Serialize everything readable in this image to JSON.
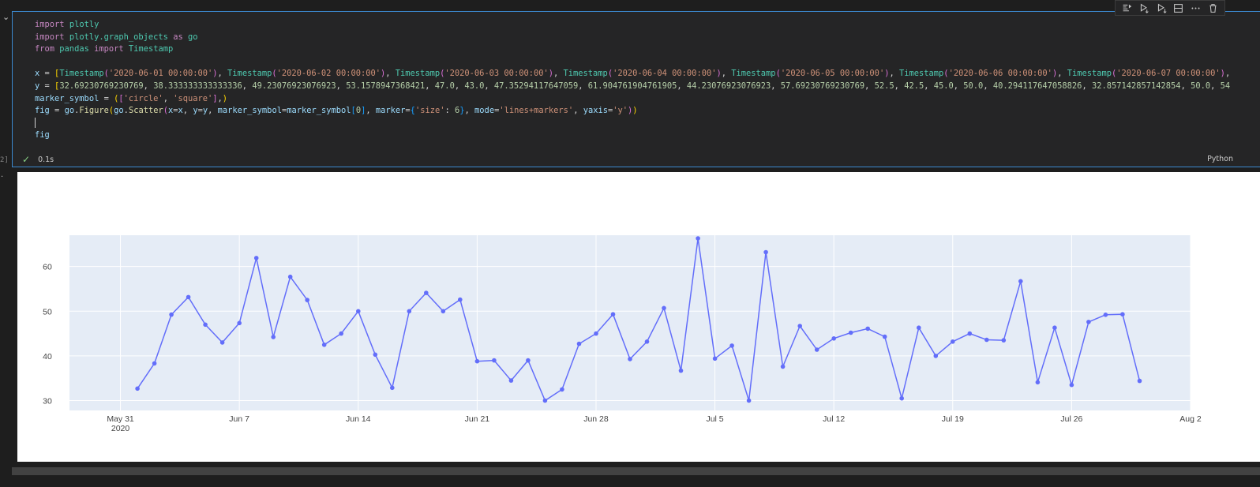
{
  "cell": {
    "execution_count": "2]",
    "code_lines": [
      [
        [
          "kw",
          "import"
        ],
        [
          "txt",
          " "
        ],
        [
          "mod",
          "plotly"
        ]
      ],
      [
        [
          "kw",
          "import"
        ],
        [
          "txt",
          " "
        ],
        [
          "mod",
          "plotly.graph_objects"
        ],
        [
          "txt",
          " "
        ],
        [
          "kw",
          "as"
        ],
        [
          "txt",
          " "
        ],
        [
          "mod",
          "go"
        ]
      ],
      [
        [
          "kw",
          "from"
        ],
        [
          "txt",
          " "
        ],
        [
          "mod",
          "pandas"
        ],
        [
          "txt",
          " "
        ],
        [
          "kw",
          "import"
        ],
        [
          "txt",
          " "
        ],
        [
          "mod",
          "Timestamp"
        ]
      ],
      [],
      [
        [
          "var",
          "x"
        ],
        [
          "txt",
          " = "
        ],
        [
          "brk1",
          "["
        ],
        [
          "mod",
          "Timestamp"
        ],
        [
          "brk2",
          "("
        ],
        [
          "str",
          "'2020-06-01 00:00:00'"
        ],
        [
          "brk2",
          ")"
        ],
        [
          "txt",
          ", "
        ],
        [
          "mod",
          "Timestamp"
        ],
        [
          "brk2",
          "("
        ],
        [
          "str",
          "'2020-06-02 00:00:00'"
        ],
        [
          "brk2",
          ")"
        ],
        [
          "txt",
          ", "
        ],
        [
          "mod",
          "Timestamp"
        ],
        [
          "brk2",
          "("
        ],
        [
          "str",
          "'2020-06-03 00:00:00'"
        ],
        [
          "brk2",
          ")"
        ],
        [
          "txt",
          ", "
        ],
        [
          "mod",
          "Timestamp"
        ],
        [
          "brk2",
          "("
        ],
        [
          "str",
          "'2020-06-04 00:00:00'"
        ],
        [
          "brk2",
          ")"
        ],
        [
          "txt",
          ", "
        ],
        [
          "mod",
          "Timestamp"
        ],
        [
          "brk2",
          "("
        ],
        [
          "str",
          "'2020-06-05 00:00:00'"
        ],
        [
          "brk2",
          ")"
        ],
        [
          "txt",
          ", "
        ],
        [
          "mod",
          "Timestamp"
        ],
        [
          "brk2",
          "("
        ],
        [
          "str",
          "'2020-06-06 00:00:00'"
        ],
        [
          "brk2",
          ")"
        ],
        [
          "txt",
          ", "
        ],
        [
          "mod",
          "Timestamp"
        ],
        [
          "brk2",
          "("
        ],
        [
          "str",
          "'2020-06-07 00:00:00'"
        ],
        [
          "brk2",
          ")"
        ],
        [
          "txt",
          ","
        ]
      ],
      [
        [
          "var",
          "y"
        ],
        [
          "txt",
          " = "
        ],
        [
          "brk1",
          "["
        ],
        [
          "num",
          "32.69230769230769"
        ],
        [
          "txt",
          ", "
        ],
        [
          "num",
          "38.333333333333336"
        ],
        [
          "txt",
          ", "
        ],
        [
          "num",
          "49.23076923076923"
        ],
        [
          "txt",
          ", "
        ],
        [
          "num",
          "53.1578947368421"
        ],
        [
          "txt",
          ", "
        ],
        [
          "num",
          "47.0"
        ],
        [
          "txt",
          ", "
        ],
        [
          "num",
          "43.0"
        ],
        [
          "txt",
          ", "
        ],
        [
          "num",
          "47.35294117647059"
        ],
        [
          "txt",
          ", "
        ],
        [
          "num",
          "61.904761904761905"
        ],
        [
          "txt",
          ", "
        ],
        [
          "num",
          "44.23076923076923"
        ],
        [
          "txt",
          ", "
        ],
        [
          "num",
          "57.69230769230769"
        ],
        [
          "txt",
          ", "
        ],
        [
          "num",
          "52.5"
        ],
        [
          "txt",
          ", "
        ],
        [
          "num",
          "42.5"
        ],
        [
          "txt",
          ", "
        ],
        [
          "num",
          "45.0"
        ],
        [
          "txt",
          ", "
        ],
        [
          "num",
          "50.0"
        ],
        [
          "txt",
          ", "
        ],
        [
          "num",
          "40.294117647058826"
        ],
        [
          "txt",
          ", "
        ],
        [
          "num",
          "32.857142857142854"
        ],
        [
          "txt",
          ", "
        ],
        [
          "num",
          "50.0"
        ],
        [
          "txt",
          ", "
        ],
        [
          "num",
          "54"
        ]
      ],
      [
        [
          "var",
          "marker_symbol"
        ],
        [
          "txt",
          " = "
        ],
        [
          "brk1",
          "("
        ],
        [
          "brk2",
          "["
        ],
        [
          "str",
          "'circle'"
        ],
        [
          "txt",
          ", "
        ],
        [
          "str",
          "'square'"
        ],
        [
          "brk2",
          "]"
        ],
        [
          "txt",
          ","
        ],
        [
          "brk1",
          ")"
        ]
      ],
      [
        [
          "var",
          "fig"
        ],
        [
          "txt",
          " = "
        ],
        [
          "var",
          "go"
        ],
        [
          "txt",
          "."
        ],
        [
          "fn",
          "Figure"
        ],
        [
          "brk1",
          "("
        ],
        [
          "var",
          "go"
        ],
        [
          "txt",
          "."
        ],
        [
          "fn",
          "Scatter"
        ],
        [
          "brk2",
          "("
        ],
        [
          "var",
          "x"
        ],
        [
          "txt",
          "="
        ],
        [
          "var",
          "x"
        ],
        [
          "txt",
          ", "
        ],
        [
          "var",
          "y"
        ],
        [
          "txt",
          "="
        ],
        [
          "var",
          "y"
        ],
        [
          "txt",
          ", "
        ],
        [
          "var",
          "marker_symbol"
        ],
        [
          "txt",
          "="
        ],
        [
          "var",
          "marker_symbol"
        ],
        [
          "brk3",
          "["
        ],
        [
          "num",
          "0"
        ],
        [
          "brk3",
          "]"
        ],
        [
          "txt",
          ", "
        ],
        [
          "var",
          "marker"
        ],
        [
          "txt",
          "="
        ],
        [
          "brk3",
          "{"
        ],
        [
          "str",
          "'size'"
        ],
        [
          "txt",
          ": "
        ],
        [
          "num",
          "6"
        ],
        [
          "brk3",
          "}"
        ],
        [
          "txt",
          ", "
        ],
        [
          "var",
          "mode"
        ],
        [
          "txt",
          "="
        ],
        [
          "str",
          "'lines+markers'"
        ],
        [
          "txt",
          ", "
        ],
        [
          "var",
          "yaxis"
        ],
        [
          "txt",
          "="
        ],
        [
          "str",
          "'y'"
        ],
        [
          "brk2",
          ")"
        ],
        [
          "brk1",
          ")"
        ]
      ],
      [
        [
          "caret",
          ""
        ]
      ],
      [
        [
          "var",
          "fig"
        ]
      ]
    ],
    "status_icon": "check-icon",
    "exec_time": "0.1s",
    "language": "Python"
  },
  "toolbar": {
    "icons": [
      "execute-above-icon",
      "execute-cell-below-icon",
      "execute-below-icon",
      "split-cell-icon",
      "more-actions-icon",
      "delete-cell-icon"
    ]
  },
  "colors": {
    "plot_bg": "#e5ecf6",
    "line": "#636efa",
    "cell_border": "#3c89d0",
    "editor_bg": "#252526"
  },
  "chart_data": {
    "type": "line",
    "mode": "lines+markers",
    "marker_symbol": "circle",
    "x_start": "2020-06-01",
    "x_tick_labels": [
      "May 31\n2020",
      "Jun 7",
      "Jun 14",
      "Jun 21",
      "Jun 28",
      "Jul 5",
      "Jul 12",
      "Jul 19",
      "Jul 26",
      "Aug 2"
    ],
    "x_tick_dates": [
      "2020-05-31",
      "2020-06-07",
      "2020-06-14",
      "2020-06-21",
      "2020-06-28",
      "2020-07-05",
      "2020-07-12",
      "2020-07-19",
      "2020-07-26",
      "2020-08-02"
    ],
    "xlim": [
      "2020-05-28",
      "2020-08-02"
    ],
    "y_ticks": [
      30,
      40,
      50,
      60
    ],
    "ylim": [
      27.8,
      67.0
    ],
    "grid": true,
    "values": [
      32.69,
      38.33,
      49.23,
      53.16,
      47.0,
      43.0,
      47.35,
      61.9,
      44.23,
      57.69,
      52.5,
      42.5,
      45.0,
      50.0,
      40.29,
      32.86,
      50.0,
      54.1,
      50.0,
      52.6,
      38.8,
      39.0,
      34.5,
      39.0,
      30.0,
      32.5,
      42.7,
      45.0,
      49.3,
      39.3,
      43.2,
      50.7,
      36.7,
      66.3,
      39.4,
      42.3,
      30.0,
      63.2,
      37.6,
      46.7,
      41.4,
      43.9,
      45.2,
      46.1,
      44.3,
      30.5,
      46.3,
      40.0,
      43.2,
      45.0,
      43.6,
      43.5,
      56.7,
      34.1,
      46.3,
      33.5,
      47.6,
      49.2,
      49.3,
      34.4
    ]
  }
}
